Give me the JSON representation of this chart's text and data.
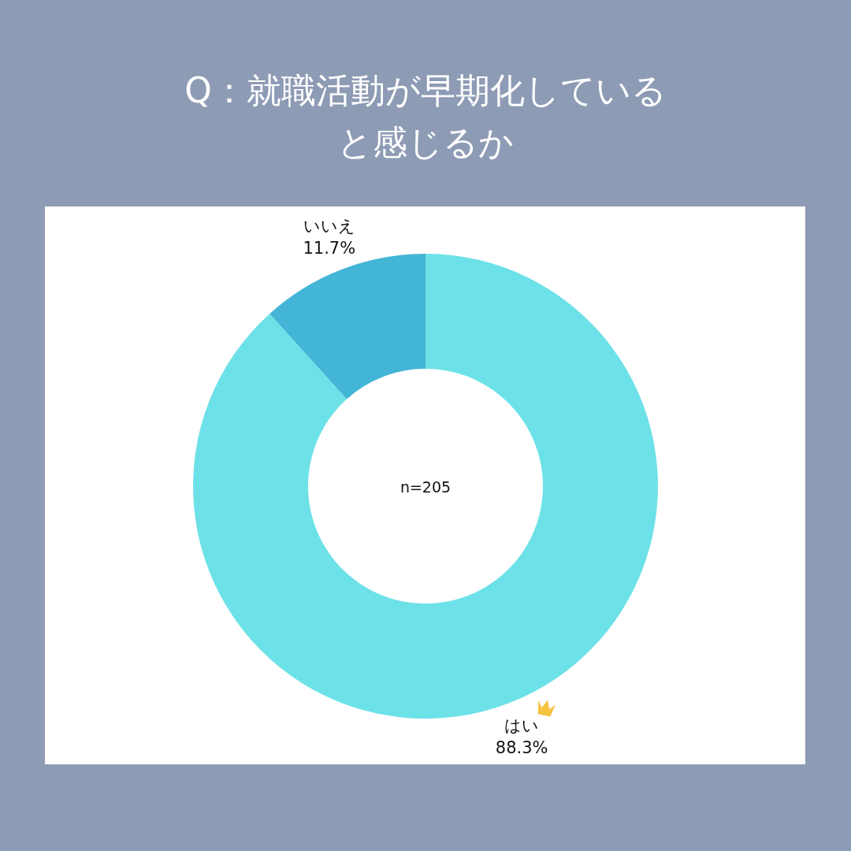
{
  "chart_data": {
    "type": "donut",
    "title": "Q：就職活動が早期化していると感じるか",
    "categories": [
      "はい",
      "いいえ"
    ],
    "values": [
      88.3,
      11.7
    ],
    "colors": [
      "#6de1e8",
      "#43b5d6"
    ],
    "value_labels": [
      "88.3%",
      "11.7%"
    ],
    "annotations": [
      "n=205"
    ]
  }
}
